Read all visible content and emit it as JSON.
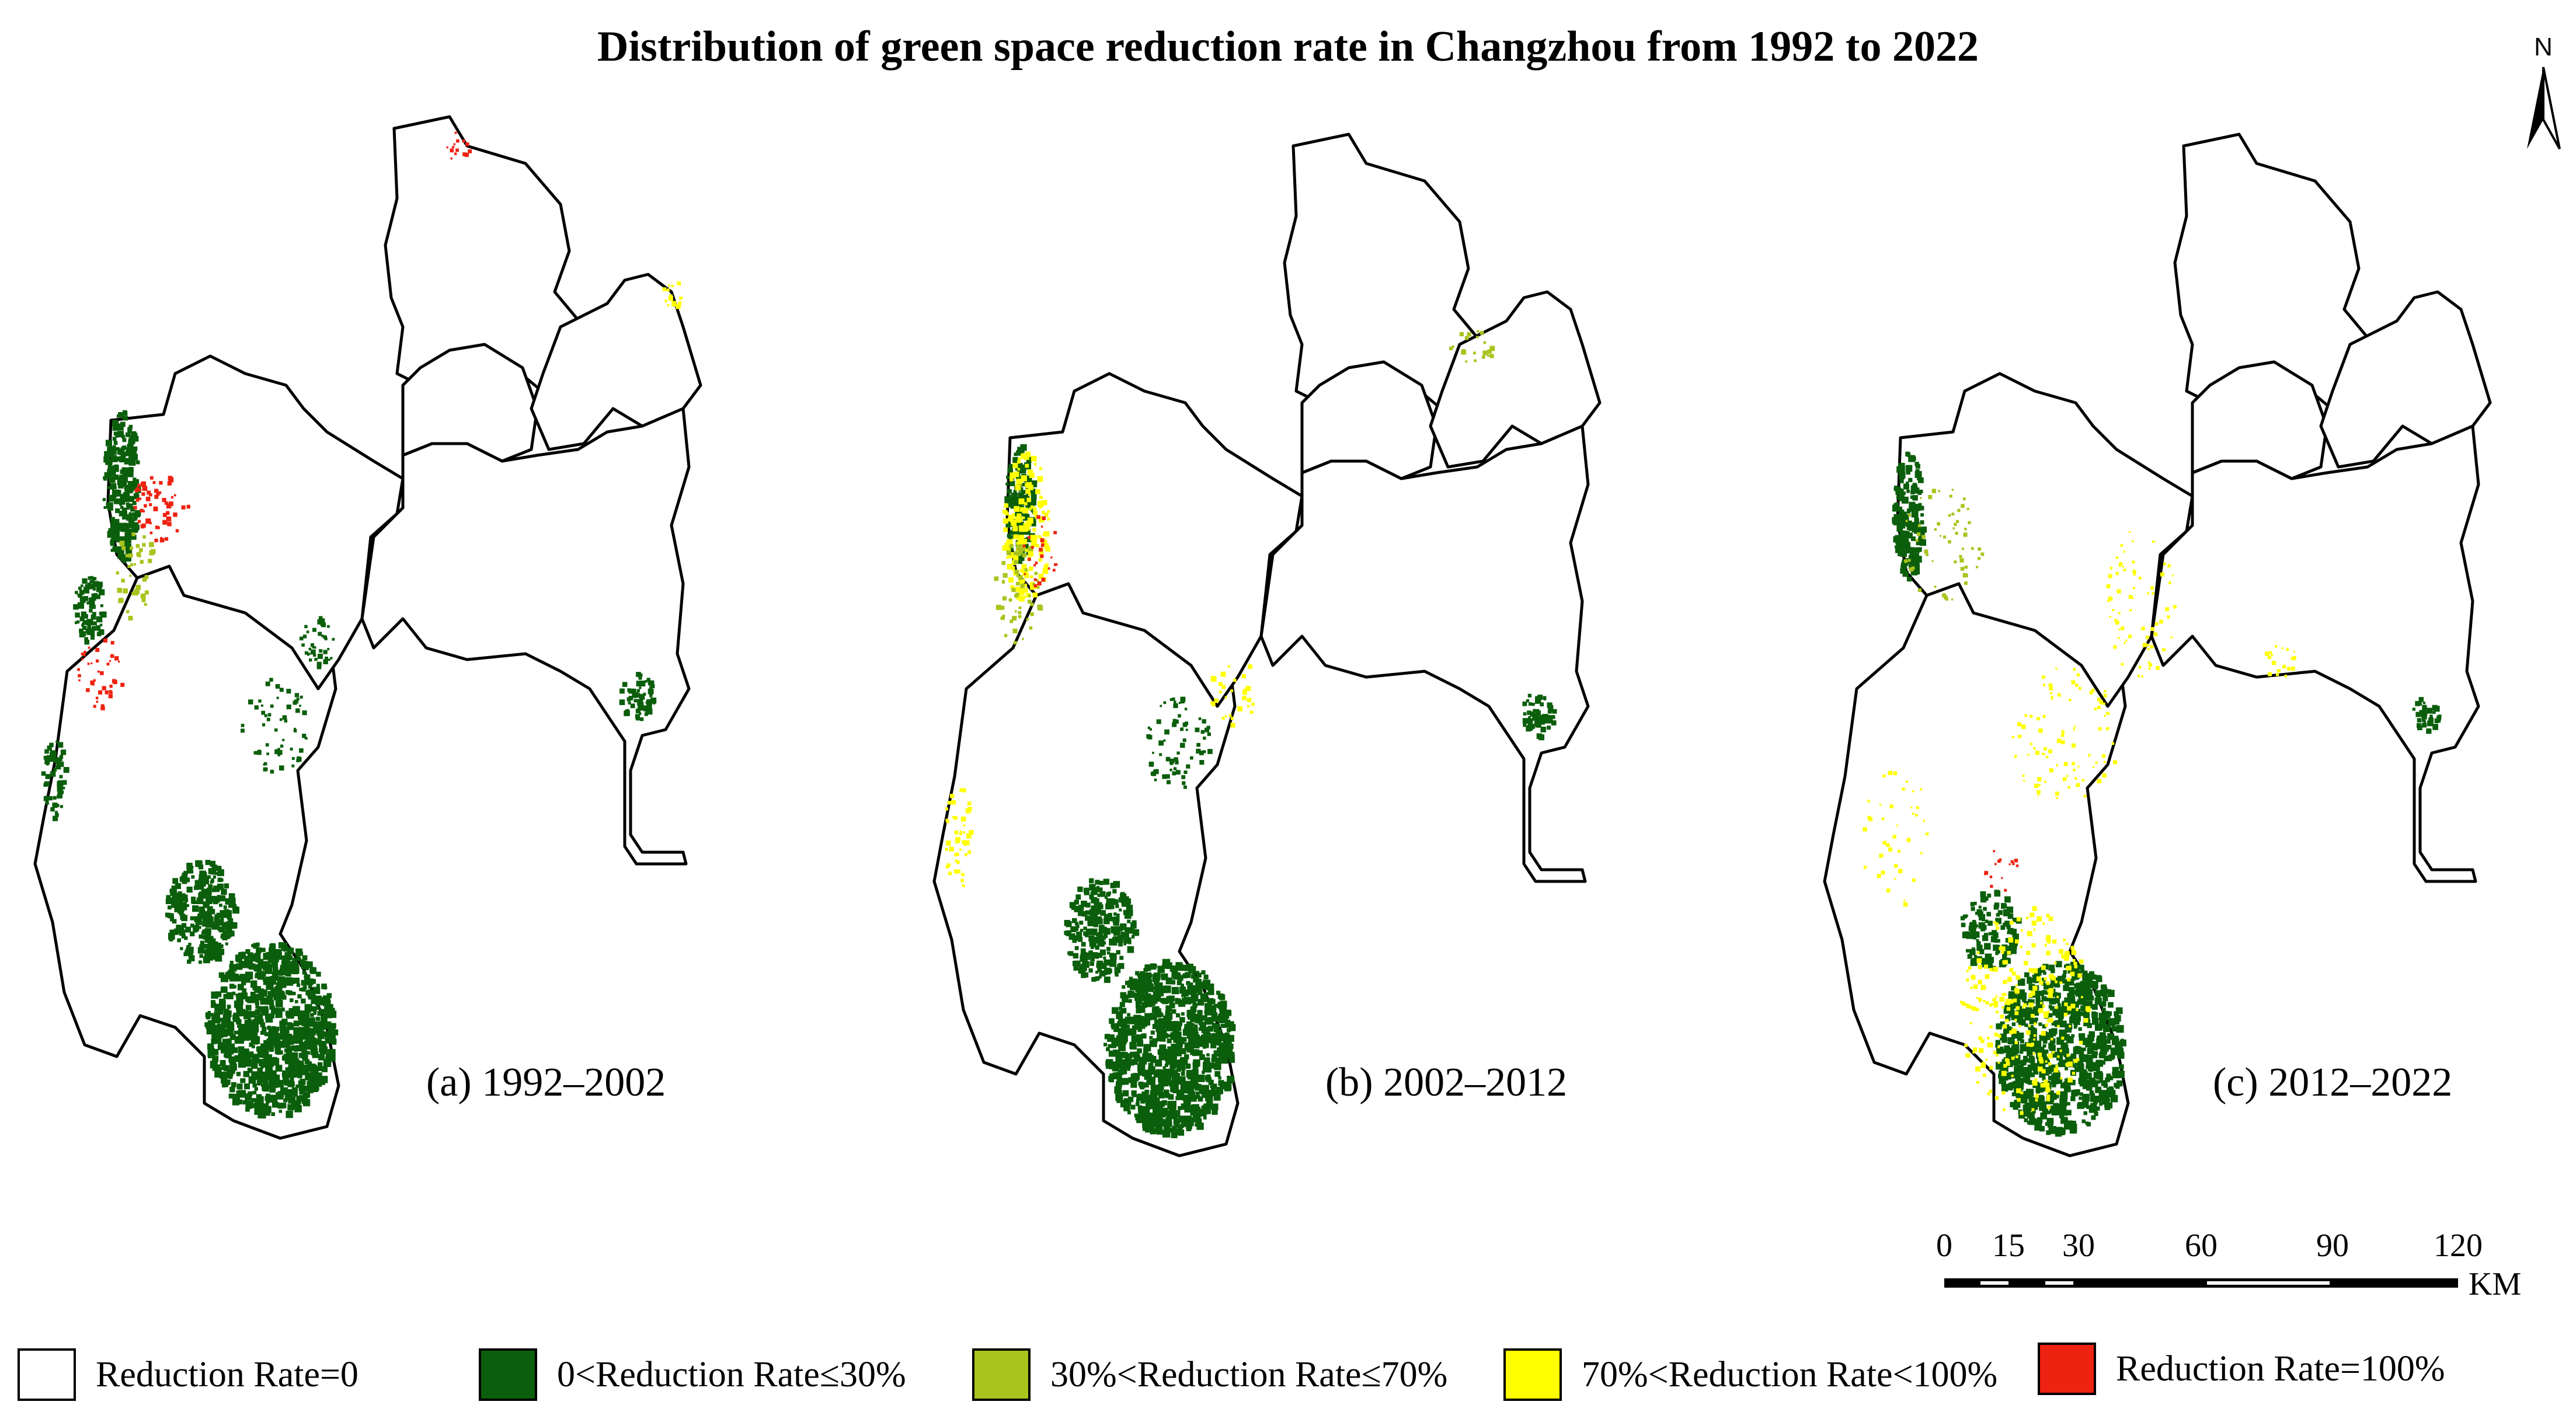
{
  "title": "Distribution of green space reduction rate in Changzhou  from 1992 to 2022",
  "north_arrow_label": "N",
  "panels": [
    {
      "label": "(a) 1992–2002",
      "period": "1992-2002"
    },
    {
      "label": "(b) 2002–2012",
      "period": "2002-2012"
    },
    {
      "label": "(c) 2012–2022",
      "period": "2012-2022"
    }
  ],
  "legend": [
    {
      "label": "Reduction Rate=0",
      "color": "#ffffff"
    },
    {
      "label": "0<Reduction Rate≤30%",
      "color": "#0b5e0b"
    },
    {
      "label": "30%<Reduction Rate≤70%",
      "color": "#a9c41c"
    },
    {
      "label": "70%<Reduction Rate<100%",
      "color": "#ffff00"
    },
    {
      "label": "Reduction Rate=100%",
      "color": "#ee2211"
    }
  ],
  "scale_bar": {
    "ticks": [
      "0",
      "15",
      "30",
      "60",
      "90",
      "120"
    ],
    "values": [
      0,
      15,
      30,
      60,
      90,
      120
    ],
    "unit": "KM"
  },
  "colors": {
    "outline": "#000000",
    "green": "#0b5e0b",
    "olive": "#a9c41c",
    "yellow": "#ffff00",
    "red": "#ee2211"
  }
}
